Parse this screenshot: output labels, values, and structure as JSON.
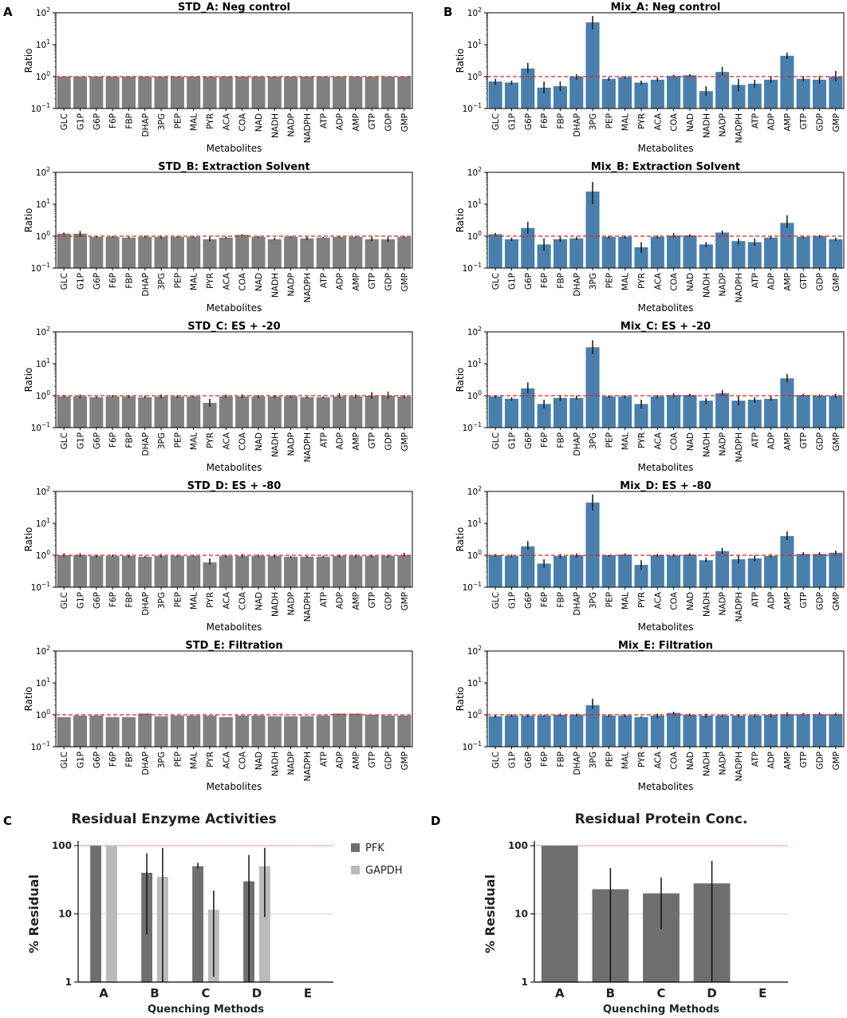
{
  "colors": {
    "std_bar": "#808080",
    "mix_bar": "#4a7fab",
    "ref_line": "#e02020",
    "pfk": "#6d6f70",
    "gapdh": "#b9bbbc",
    "err": "#222222",
    "grid": "#d0d6dd"
  },
  "panel_letters": [
    "A",
    "B",
    "C",
    "D"
  ],
  "chart_data": [
    {
      "id": "STD_A",
      "type": "bar",
      "log": true,
      "title": "STD_A: Neg control",
      "xlabel": "Metabolites",
      "ylabel": "Ratio",
      "ylim": [
        0.1,
        100
      ],
      "ref_line": 1,
      "categories": [
        "GLC",
        "G1P",
        "G6P",
        "F6P",
        "FBP",
        "DHAP",
        "3PG",
        "PEP",
        "MAL",
        "PYR",
        "ACA",
        "COA",
        "NAD",
        "NADH",
        "NADP",
        "NADPH",
        "ATP",
        "ADP",
        "AMP",
        "GTP",
        "GDP",
        "GMP"
      ],
      "values": [
        1,
        1,
        1,
        1,
        1,
        1,
        1,
        1,
        1,
        1,
        1,
        1,
        1,
        1,
        1,
        1,
        1,
        1,
        1,
        1,
        1,
        1
      ],
      "err_low": [
        1,
        1,
        1,
        1,
        1,
        1,
        1,
        1,
        1,
        1,
        1,
        1,
        1,
        1,
        1,
        1,
        1,
        1,
        1,
        1,
        1,
        1
      ],
      "err_high": [
        1,
        1,
        1,
        1,
        1,
        1,
        1,
        1,
        1,
        1,
        1,
        1,
        1,
        1,
        1,
        1,
        1,
        1,
        1,
        1,
        1,
        1
      ]
    },
    {
      "id": "STD_B",
      "type": "bar",
      "log": true,
      "title": "STD_B: Extraction Solvent",
      "xlabel": "Metabolites",
      "ylabel": "Ratio",
      "ylim": [
        0.1,
        100
      ],
      "ref_line": 1,
      "categories": [
        "GLC",
        "G1P",
        "G6P",
        "F6P",
        "FBP",
        "DHAP",
        "3PG",
        "PEP",
        "MAL",
        "PYR",
        "ACA",
        "COA",
        "NAD",
        "NADH",
        "NADP",
        "NADPH",
        "ATP",
        "ADP",
        "AMP",
        "GTP",
        "GDP",
        "GMP"
      ],
      "values": [
        1.2,
        1.2,
        0.95,
        0.95,
        0.9,
        0.95,
        0.95,
        0.95,
        0.95,
        0.8,
        0.9,
        1.1,
        0.95,
        0.8,
        0.95,
        0.85,
        0.9,
        0.95,
        0.95,
        0.8,
        0.8,
        0.95
      ],
      "err_low": [
        1.1,
        0.95,
        0.9,
        0.9,
        0.85,
        0.9,
        0.85,
        0.9,
        0.9,
        0.7,
        0.85,
        1.05,
        0.9,
        0.75,
        0.9,
        0.75,
        0.85,
        0.9,
        0.9,
        0.7,
        0.65,
        0.9
      ],
      "err_high": [
        1.3,
        1.45,
        1.0,
        1.0,
        0.95,
        1.05,
        1.05,
        1.0,
        1.0,
        0.95,
        0.95,
        1.15,
        1.0,
        0.9,
        1.0,
        0.95,
        0.95,
        1.0,
        1.0,
        0.95,
        0.95,
        1.0
      ]
    },
    {
      "id": "STD_C",
      "type": "bar",
      "log": true,
      "title": "STD_C: ES + -20",
      "xlabel": "Metabolites",
      "ylabel": "Ratio",
      "ylim": [
        0.1,
        100
      ],
      "ref_line": 1,
      "categories": [
        "GLC",
        "G1P",
        "G6P",
        "F6P",
        "FBP",
        "DHAP",
        "3PG",
        "PEP",
        "MAL",
        "PYR",
        "ACA",
        "COA",
        "NAD",
        "NADH",
        "NADP",
        "NADPH",
        "ATP",
        "ADP",
        "AMP",
        "GTP",
        "GDP",
        "GMP"
      ],
      "values": [
        0.95,
        0.95,
        0.9,
        0.95,
        0.95,
        0.9,
        0.95,
        0.95,
        0.95,
        0.6,
        0.95,
        0.95,
        0.95,
        0.95,
        0.95,
        0.9,
        0.9,
        0.95,
        0.95,
        1.0,
        1.0,
        0.95
      ],
      "err_low": [
        0.9,
        0.85,
        0.85,
        0.9,
        0.85,
        0.85,
        0.85,
        0.85,
        0.9,
        0.45,
        0.85,
        0.85,
        0.85,
        0.85,
        0.85,
        0.85,
        0.85,
        0.85,
        0.85,
        0.8,
        0.8,
        0.85
      ],
      "err_high": [
        1.05,
        1.1,
        0.95,
        1.05,
        1.05,
        1.0,
        1.1,
        1.05,
        1.0,
        0.8,
        1.1,
        1.1,
        1.05,
        1.05,
        1.05,
        0.95,
        0.95,
        1.2,
        1.1,
        1.3,
        1.35,
        1.05
      ]
    },
    {
      "id": "STD_D",
      "type": "bar",
      "log": true,
      "title": "STD_D: ES + -80",
      "xlabel": "Metabolites",
      "ylabel": "Ratio",
      "ylim": [
        0.1,
        100
      ],
      "ref_line": 1,
      "categories": [
        "GLC",
        "G1P",
        "G6P",
        "F6P",
        "FBP",
        "DHAP",
        "3PG",
        "PEP",
        "MAL",
        "PYR",
        "ACA",
        "COA",
        "NAD",
        "NADH",
        "NADP",
        "NADPH",
        "ATP",
        "ADP",
        "AMP",
        "GTP",
        "GDP",
        "GMP"
      ],
      "values": [
        1.0,
        1.0,
        0.95,
        0.95,
        0.95,
        0.9,
        0.95,
        0.95,
        0.95,
        0.6,
        0.95,
        0.95,
        0.95,
        0.95,
        0.9,
        0.9,
        0.9,
        0.95,
        0.95,
        0.95,
        0.95,
        1.0
      ],
      "err_low": [
        0.9,
        0.9,
        0.85,
        0.9,
        0.85,
        0.85,
        0.85,
        0.9,
        0.9,
        0.5,
        0.85,
        0.85,
        0.9,
        0.85,
        0.85,
        0.85,
        0.85,
        0.85,
        0.85,
        0.85,
        0.85,
        0.9
      ],
      "err_high": [
        1.15,
        1.15,
        1.05,
        1.05,
        1.05,
        0.95,
        1.1,
        1.05,
        1.0,
        0.8,
        1.05,
        1.1,
        1.05,
        1.05,
        0.95,
        0.95,
        0.95,
        1.05,
        1.05,
        1.05,
        1.05,
        1.2
      ]
    },
    {
      "id": "STD_E",
      "type": "bar",
      "log": true,
      "title": "STD_E: Filtration",
      "xlabel": "Metabolites",
      "ylabel": "Ratio",
      "ylim": [
        0.1,
        100
      ],
      "ref_line": 1,
      "categories": [
        "GLC",
        "G1P",
        "G6P",
        "F6P",
        "FBP",
        "DHAP",
        "3PG",
        "PEP",
        "MAL",
        "PYR",
        "ACA",
        "COA",
        "NAD",
        "NADH",
        "NADP",
        "NADPH",
        "ATP",
        "ADP",
        "AMP",
        "GTP",
        "GDP",
        "GMP"
      ],
      "values": [
        0.85,
        0.95,
        0.95,
        0.85,
        0.85,
        1.1,
        0.9,
        0.95,
        0.95,
        0.95,
        0.85,
        0.95,
        0.95,
        0.9,
        0.9,
        0.9,
        0.95,
        1.1,
        1.1,
        1.0,
        0.95,
        0.95
      ],
      "err_low": [
        0.85,
        0.95,
        0.95,
        0.85,
        0.85,
        1.1,
        0.9,
        0.95,
        0.95,
        0.95,
        0.85,
        0.95,
        0.95,
        0.9,
        0.9,
        0.9,
        0.95,
        1.1,
        1.1,
        1.0,
        0.95,
        0.95
      ],
      "err_high": [
        0.85,
        0.95,
        0.95,
        0.85,
        0.85,
        1.1,
        0.9,
        0.95,
        0.95,
        0.95,
        0.85,
        0.95,
        0.95,
        0.9,
        0.9,
        0.9,
        0.95,
        1.1,
        1.1,
        1.0,
        0.95,
        0.95
      ]
    },
    {
      "id": "Mix_A",
      "type": "bar",
      "log": true,
      "title": "Mix_A: Neg control",
      "xlabel": "Metabolites",
      "ylabel": "Ratio",
      "ylim": [
        0.1,
        100
      ],
      "ref_line": 1,
      "categories": [
        "GLC",
        "G1P",
        "G6P",
        "F6P",
        "FBP",
        "DHAP",
        "3PG",
        "PEP",
        "MAL",
        "PYR",
        "ACA",
        "COA",
        "NAD",
        "NADH",
        "NADP",
        "NADPH",
        "ATP",
        "ADP",
        "AMP",
        "GTP",
        "GDP",
        "GMP"
      ],
      "values": [
        0.7,
        0.65,
        1.8,
        0.45,
        0.5,
        1.0,
        50,
        0.85,
        0.95,
        0.65,
        0.8,
        1.05,
        1.1,
        0.35,
        1.4,
        0.55,
        0.6,
        0.8,
        4.5,
        0.85,
        0.8,
        1.0
      ],
      "err_low": [
        0.55,
        0.55,
        1.3,
        0.3,
        0.35,
        0.8,
        30,
        0.75,
        0.85,
        0.55,
        0.7,
        0.95,
        1.0,
        0.25,
        1.1,
        0.35,
        0.45,
        0.65,
        3.6,
        0.7,
        0.6,
        0.7
      ],
      "err_high": [
        0.85,
        0.75,
        2.7,
        0.7,
        0.7,
        1.2,
        80,
        0.95,
        1.05,
        0.75,
        0.95,
        1.15,
        1.2,
        0.5,
        2.0,
        0.85,
        0.8,
        1.0,
        5.6,
        1.05,
        1.05,
        1.5
      ]
    },
    {
      "id": "Mix_B",
      "type": "bar",
      "log": true,
      "title": "Mix_B: Extraction Solvent",
      "xlabel": "Metabolites",
      "ylabel": "Ratio",
      "ylim": [
        0.1,
        100
      ],
      "ref_line": 1,
      "categories": [
        "GLC",
        "G1P",
        "G6P",
        "F6P",
        "FBP",
        "DHAP",
        "3PG",
        "PEP",
        "MAL",
        "PYR",
        "ACA",
        "COA",
        "NAD",
        "NADH",
        "NADP",
        "NADPH",
        "ATP",
        "ADP",
        "AMP",
        "GTP",
        "GDP",
        "GMP"
      ],
      "values": [
        1.15,
        0.8,
        1.8,
        0.55,
        0.8,
        0.85,
        25,
        0.95,
        0.95,
        0.45,
        0.95,
        1.05,
        1.05,
        0.55,
        1.3,
        0.7,
        0.65,
        0.9,
        2.6,
        0.95,
        1.0,
        0.8
      ],
      "err_low": [
        1.05,
        0.7,
        1.2,
        0.35,
        0.65,
        0.75,
        10,
        0.85,
        0.85,
        0.3,
        0.85,
        0.9,
        0.95,
        0.45,
        1.1,
        0.55,
        0.5,
        0.8,
        1.8,
        0.85,
        0.9,
        0.7
      ],
      "err_high": [
        1.25,
        0.9,
        2.8,
        0.85,
        0.95,
        0.95,
        50,
        1.05,
        1.05,
        0.65,
        1.05,
        1.25,
        1.15,
        0.65,
        1.5,
        0.85,
        0.85,
        1.0,
        4.5,
        1.05,
        1.1,
        0.9
      ]
    },
    {
      "id": "Mix_C",
      "type": "bar",
      "log": true,
      "title": "Mix_C: ES + -20",
      "xlabel": "Metabolites",
      "ylabel": "Ratio",
      "ylim": [
        0.1,
        100
      ],
      "ref_line": 1,
      "categories": [
        "GLC",
        "G1P",
        "G6P",
        "F6P",
        "FBP",
        "DHAP",
        "3PG",
        "PEP",
        "MAL",
        "PYR",
        "ACA",
        "COA",
        "NAD",
        "NADH",
        "NADP",
        "NADPH",
        "ATP",
        "ADP",
        "AMP",
        "GTP",
        "GDP",
        "GMP"
      ],
      "values": [
        0.95,
        0.8,
        1.7,
        0.55,
        0.85,
        0.85,
        33,
        0.95,
        0.95,
        0.55,
        0.95,
        1.05,
        1.05,
        0.7,
        1.2,
        0.7,
        0.75,
        0.8,
        3.5,
        1.05,
        1.0,
        1.0
      ],
      "err_low": [
        0.85,
        0.7,
        1.2,
        0.4,
        0.7,
        0.75,
        20,
        0.85,
        0.85,
        0.4,
        0.85,
        0.9,
        0.95,
        0.55,
        1.0,
        0.5,
        0.6,
        0.7,
        2.6,
        0.95,
        0.9,
        0.85
      ],
      "err_high": [
        1.05,
        0.9,
        2.6,
        0.75,
        1.05,
        1.0,
        55,
        1.0,
        1.05,
        0.75,
        1.05,
        1.2,
        1.15,
        0.85,
        1.5,
        0.95,
        0.9,
        0.95,
        4.8,
        1.15,
        1.1,
        1.15
      ]
    },
    {
      "id": "Mix_D",
      "type": "bar",
      "log": true,
      "title": "Mix_D: ES + -80",
      "xlabel": "Metabolites",
      "ylabel": "Ratio",
      "ylim": [
        0.1,
        100
      ],
      "ref_line": 1,
      "categories": [
        "GLC",
        "G1P",
        "G6P",
        "F6P",
        "FBP",
        "DHAP",
        "3PG",
        "PEP",
        "MAL",
        "PYR",
        "ACA",
        "COA",
        "NAD",
        "NADH",
        "NADP",
        "NADPH",
        "ATP",
        "ADP",
        "AMP",
        "GTP",
        "GDP",
        "GMP"
      ],
      "values": [
        1.0,
        0.95,
        1.9,
        0.55,
        0.95,
        1.0,
        45,
        1.0,
        1.05,
        0.5,
        1.0,
        1.0,
        1.05,
        0.7,
        1.35,
        0.75,
        0.8,
        0.95,
        4.0,
        1.1,
        1.1,
        1.2
      ],
      "err_low": [
        0.9,
        0.85,
        1.5,
        0.4,
        0.8,
        0.85,
        25,
        0.9,
        0.95,
        0.35,
        0.9,
        0.9,
        0.95,
        0.6,
        1.1,
        0.55,
        0.65,
        0.85,
        3.0,
        1.0,
        1.0,
        1.05
      ],
      "err_high": [
        1.1,
        1.05,
        2.8,
        0.75,
        1.1,
        1.15,
        80,
        1.05,
        1.15,
        0.7,
        1.1,
        1.1,
        1.15,
        0.85,
        1.7,
        1.0,
        1.0,
        1.1,
        5.6,
        1.25,
        1.25,
        1.4
      ]
    },
    {
      "id": "Mix_E",
      "type": "bar",
      "log": true,
      "title": "Mix_E: Filtration",
      "xlabel": "Metabolites",
      "ylabel": "Ratio",
      "ylim": [
        0.1,
        100
      ],
      "ref_line": 1,
      "categories": [
        "GLC",
        "G1P",
        "G6P",
        "F6P",
        "FBP",
        "DHAP",
        "3PG",
        "PEP",
        "MAL",
        "PYR",
        "ACA",
        "COA",
        "NAD",
        "NADH",
        "NADP",
        "NADPH",
        "ATP",
        "ADP",
        "AMP",
        "GTP",
        "GDP",
        "GMP"
      ],
      "values": [
        0.9,
        0.95,
        0.95,
        0.95,
        1.0,
        1.0,
        2.0,
        0.95,
        0.95,
        0.85,
        0.95,
        1.15,
        1.0,
        0.95,
        0.95,
        0.95,
        0.95,
        1.0,
        1.05,
        1.05,
        1.05,
        1.05
      ],
      "err_low": [
        0.8,
        0.85,
        0.85,
        0.9,
        0.9,
        0.9,
        1.5,
        0.85,
        0.85,
        0.8,
        0.8,
        1.05,
        0.9,
        0.8,
        0.85,
        0.85,
        0.85,
        0.85,
        0.9,
        0.95,
        0.95,
        0.95
      ],
      "err_high": [
        1.0,
        1.05,
        1.05,
        1.0,
        1.1,
        1.1,
        3.2,
        1.05,
        1.05,
        0.9,
        1.1,
        1.25,
        1.1,
        1.1,
        1.05,
        1.05,
        1.05,
        1.1,
        1.2,
        1.15,
        1.2,
        1.15
      ]
    },
    {
      "id": "C",
      "type": "bar",
      "log": true,
      "title": "Residual Enzyme Activities",
      "xlabel": "Quenching Methods",
      "ylabel": "% Residual",
      "ylim": [
        1,
        100
      ],
      "ref_line": 100,
      "categories": [
        "A",
        "B",
        "C",
        "D",
        "E"
      ],
      "series": [
        {
          "name": "PFK",
          "values": [
            100,
            40,
            50,
            30,
            null
          ],
          "err_low": [
            100,
            5,
            46,
            1,
            null
          ],
          "err_high": [
            100,
            77,
            56,
            73,
            null
          ]
        },
        {
          "name": "GAPDH",
          "values": [
            100,
            35,
            11.5,
            50,
            null
          ],
          "err_low": [
            100,
            1,
            1.2,
            9,
            null
          ],
          "err_high": [
            100,
            93,
            22,
            93,
            null
          ]
        }
      ]
    },
    {
      "id": "D",
      "type": "bar",
      "log": true,
      "title": "Residual Protein Conc.",
      "xlabel": "Quenching Methods",
      "ylabel": "% Residual",
      "ylim": [
        1,
        100
      ],
      "ref_line": 100,
      "categories": [
        "A",
        "B",
        "C",
        "D",
        "E"
      ],
      "values": [
        100,
        23,
        20,
        28,
        null
      ],
      "err_low": [
        100,
        1,
        6,
        1,
        null
      ],
      "err_high": [
        100,
        47,
        34,
        60,
        null
      ]
    }
  ]
}
